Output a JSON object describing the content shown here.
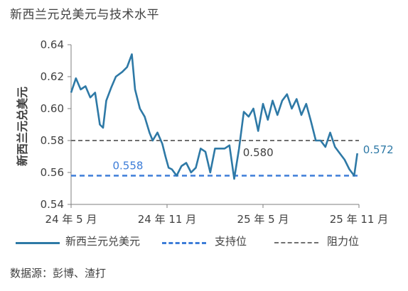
{
  "title": "新西兰元兑美元与技术水平",
  "source": "数据源：彭博、渣打",
  "colors": {
    "series": "#2E79A6",
    "support": "#3D7DD8",
    "resistance": "#707070",
    "text": "#404040"
  },
  "legend": [
    {
      "label": "新西兰元兑美元",
      "style": "solid"
    },
    {
      "label": "支持位",
      "style": "dashed"
    },
    {
      "label": "阻力位",
      "style": "dashed"
    }
  ],
  "chart_data": {
    "type": "line",
    "ylabel": "新西兰元兑美元",
    "ylim": [
      0.54,
      0.64
    ],
    "yticks": [
      "0.54",
      "0.56",
      "0.58",
      "0.60",
      "0.62",
      "0.64"
    ],
    "xticks": [
      "24 年 5 月",
      "24 年 11 月",
      "25 年 5 月",
      "25 年 11 月"
    ],
    "xtick_positions": [
      0,
      6,
      12,
      18
    ],
    "xlim": [
      0,
      18
    ],
    "series": [
      {
        "name": "新西兰元兑美元",
        "x": [
          0,
          0.3,
          0.6,
          0.9,
          1.2,
          1.5,
          1.8,
          2.0,
          2.2,
          2.5,
          2.8,
          3.2,
          3.5,
          3.8,
          4.0,
          4.3,
          4.6,
          4.9,
          5.1,
          5.4,
          5.7,
          5.9,
          6.1,
          6.3,
          6.6,
          6.9,
          7.2,
          7.5,
          7.8,
          8.1,
          8.4,
          8.7,
          9.0,
          9.3,
          9.6,
          9.9,
          10.2,
          10.5,
          10.8,
          11.1,
          11.4,
          11.7,
          12.0,
          12.3,
          12.6,
          12.9,
          13.2,
          13.5,
          13.8,
          14.1,
          14.4,
          14.7,
          15.0,
          15.3,
          15.6,
          15.9,
          16.2,
          16.5,
          16.8,
          17.1,
          17.4,
          17.7,
          17.9
        ],
        "values": [
          0.61,
          0.619,
          0.612,
          0.614,
          0.607,
          0.61,
          0.59,
          0.588,
          0.605,
          0.613,
          0.62,
          0.623,
          0.626,
          0.634,
          0.612,
          0.6,
          0.595,
          0.585,
          0.58,
          0.585,
          0.578,
          0.57,
          0.563,
          0.562,
          0.558,
          0.564,
          0.566,
          0.56,
          0.563,
          0.575,
          0.573,
          0.56,
          0.575,
          0.575,
          0.575,
          0.577,
          0.556,
          0.575,
          0.598,
          0.595,
          0.6,
          0.586,
          0.603,
          0.593,
          0.605,
          0.596,
          0.605,
          0.609,
          0.6,
          0.606,
          0.596,
          0.603,
          0.592,
          0.58,
          0.58,
          0.576,
          0.585,
          0.576,
          0.572,
          0.568,
          0.562,
          0.558,
          0.572
        ]
      },
      {
        "name": "支持位",
        "value": 0.558
      },
      {
        "name": "阻力位",
        "value": 0.58
      }
    ],
    "annotations": [
      {
        "text": "0.558",
        "x": 2.6,
        "y": 0.558
      },
      {
        "text": "0.580",
        "x": 11.7,
        "y": 0.58
      },
      {
        "text": "0.572",
        "x": 17.9,
        "y": 0.572
      }
    ],
    "grid": false
  }
}
